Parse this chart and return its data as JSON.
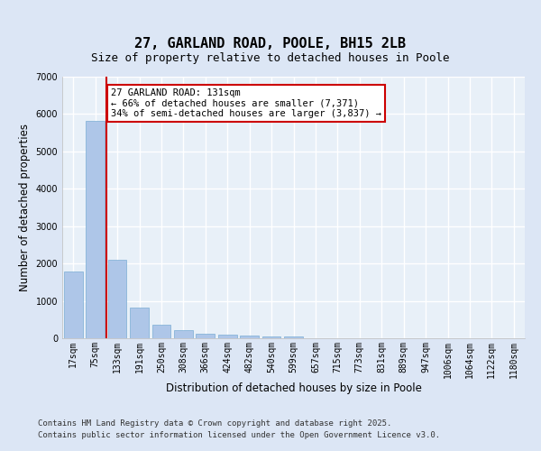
{
  "title1": "27, GARLAND ROAD, POOLE, BH15 2LB",
  "title2": "Size of property relative to detached houses in Poole",
  "xlabel": "Distribution of detached houses by size in Poole",
  "ylabel": "Number of detached properties",
  "categories": [
    "17sqm",
    "75sqm",
    "133sqm",
    "191sqm",
    "250sqm",
    "308sqm",
    "366sqm",
    "424sqm",
    "482sqm",
    "540sqm",
    "599sqm",
    "657sqm",
    "715sqm",
    "773sqm",
    "831sqm",
    "889sqm",
    "947sqm",
    "1006sqm",
    "1064sqm",
    "1122sqm",
    "1180sqm"
  ],
  "values": [
    1780,
    5820,
    2100,
    820,
    360,
    210,
    120,
    90,
    75,
    55,
    40,
    0,
    0,
    0,
    0,
    0,
    0,
    0,
    0,
    0,
    0
  ],
  "bar_color": "#aec6e8",
  "bar_edge_color": "#7aadd4",
  "vline_x_index": 2,
  "vline_color": "#cc0000",
  "annotation_text": "27 GARLAND ROAD: 131sqm\n← 66% of detached houses are smaller (7,371)\n34% of semi-detached houses are larger (3,837) →",
  "annotation_box_color": "#ffffff",
  "annotation_border_color": "#cc0000",
  "ylim": [
    0,
    7000
  ],
  "yticks": [
    0,
    1000,
    2000,
    3000,
    4000,
    5000,
    6000,
    7000
  ],
  "bg_color": "#dce6f5",
  "plot_bg_color": "#e8f0f8",
  "grid_color": "#ffffff",
  "footer1": "Contains HM Land Registry data © Crown copyright and database right 2025.",
  "footer2": "Contains public sector information licensed under the Open Government Licence v3.0.",
  "title_fontsize": 11,
  "subtitle_fontsize": 9,
  "axis_label_fontsize": 8.5,
  "tick_fontsize": 7,
  "footer_fontsize": 6.5,
  "annotation_fontsize": 7.5
}
